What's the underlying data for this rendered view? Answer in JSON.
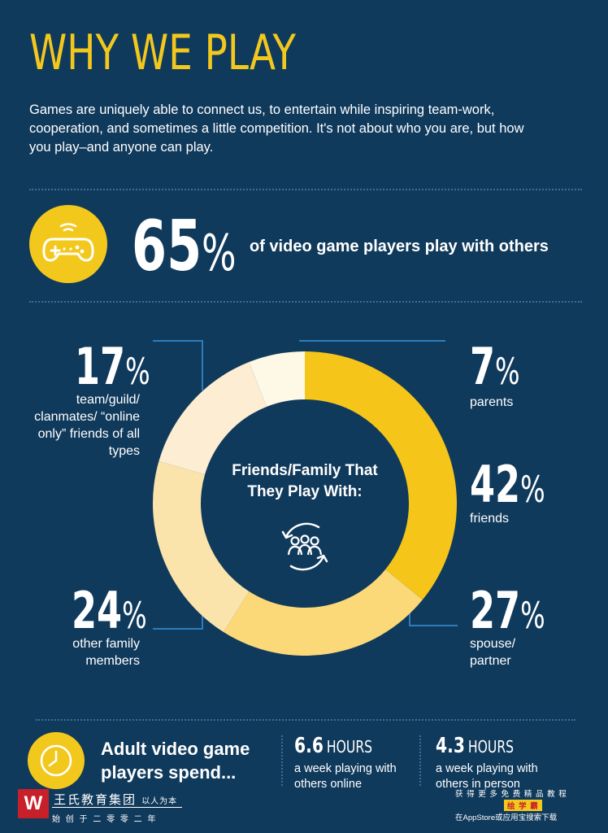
{
  "header": {
    "title": "WHY WE PLAY",
    "intro": "Games are uniquely able to connect us, to entertain while inspiring team-work, cooperation, and sometimes a little competition. It's not about who you are, but how you play–and anyone can play."
  },
  "stat_main": {
    "value": "65",
    "unit": "%",
    "text": "of video game players play with others",
    "icon": "gamepad-icon"
  },
  "donut": {
    "center_title": "Friends/Family That They Play With:",
    "center_icon": "people-cycle-icon",
    "items": [
      {
        "value": "42",
        "unit": "%",
        "label": "friends"
      },
      {
        "value": "27",
        "unit": "%",
        "label": "spouse/ partner"
      },
      {
        "value": "24",
        "unit": "%",
        "label": "other family members"
      },
      {
        "value": "17",
        "unit": "%",
        "label": "team/guild/ clanmates/ “online only” friends of all types"
      },
      {
        "value": "7",
        "unit": "%",
        "label": "parents"
      }
    ]
  },
  "chart_data": {
    "type": "pie",
    "title": "Friends/Family That They Play With:",
    "categories": [
      "friends",
      "spouse/partner",
      "other family members",
      "team/guild/clanmates/“online only” friends of all types",
      "parents"
    ],
    "values": [
      42,
      27,
      24,
      17,
      7
    ],
    "colors": [
      "#f5c51a",
      "#fbd878",
      "#fbe4ab",
      "#fcedd3",
      "#fdf9e6"
    ]
  },
  "footer": {
    "title": "Adult video game players spend...",
    "clock_icon": "clock-icon",
    "stat1": {
      "value": "6.6",
      "unit": "HOURS",
      "text": "a week playing with others online"
    },
    "stat2": {
      "value": "4.3",
      "unit": "HOURS",
      "text": "a week playing with others in person"
    }
  },
  "watermark": {
    "logo_letter": "W",
    "company": "王氏教育集团",
    "motto": "以人为本",
    "founded": "始 创 于 二 零 零 二 年",
    "right_line1": "获 得 更 多 免 费 精 品 教 程",
    "right_badge": "绘 学 霸",
    "right_line2": "在AppStore或应用宝搜索下载"
  }
}
